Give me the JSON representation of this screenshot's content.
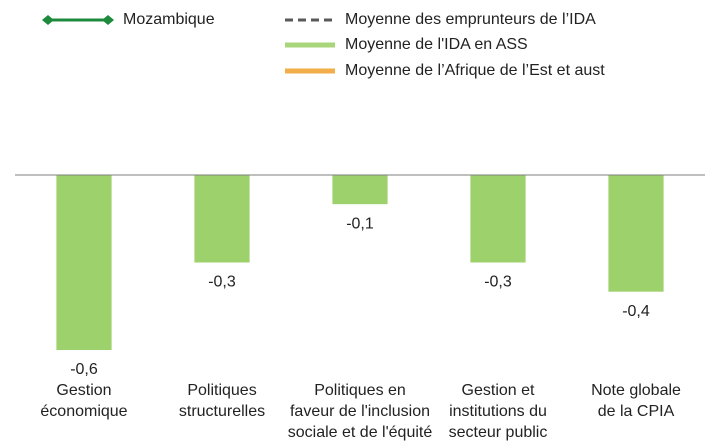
{
  "chart_data": {
    "type": "bar",
    "legend": [
      {
        "name": "Mozambique",
        "color": "#1e8a3c",
        "style": "diamond-line"
      },
      {
        "name": "Moyenne des emprunteurs de l’IDA",
        "color": "#595959",
        "style": "dashed"
      },
      {
        "name": "Moyenne de l'IDA en ASS",
        "color": "#a9d67a",
        "style": "solid"
      },
      {
        "name": "Moyenne de l’Afrique de l’Est et aust",
        "color": "#f2ae4a",
        "style": "solid"
      }
    ],
    "categories": [
      [
        "Gestion",
        "économique"
      ],
      [
        "Politiques",
        "structurelles"
      ],
      [
        "Politiques en",
        "faveur de l'inclusion",
        "sociale et de l'équité"
      ],
      [
        "Gestion et",
        "institutions du",
        "secteur public"
      ],
      [
        "Note globale",
        "de la CPIA"
      ]
    ],
    "values": [
      -0.6,
      -0.3,
      -0.1,
      -0.3,
      -0.4
    ],
    "value_labels": [
      "-0,6",
      "-0,3",
      "-0,1",
      "-0,3",
      "-0,4"
    ],
    "color": "#9dd16b",
    "ylim": [
      -0.6,
      0
    ]
  }
}
